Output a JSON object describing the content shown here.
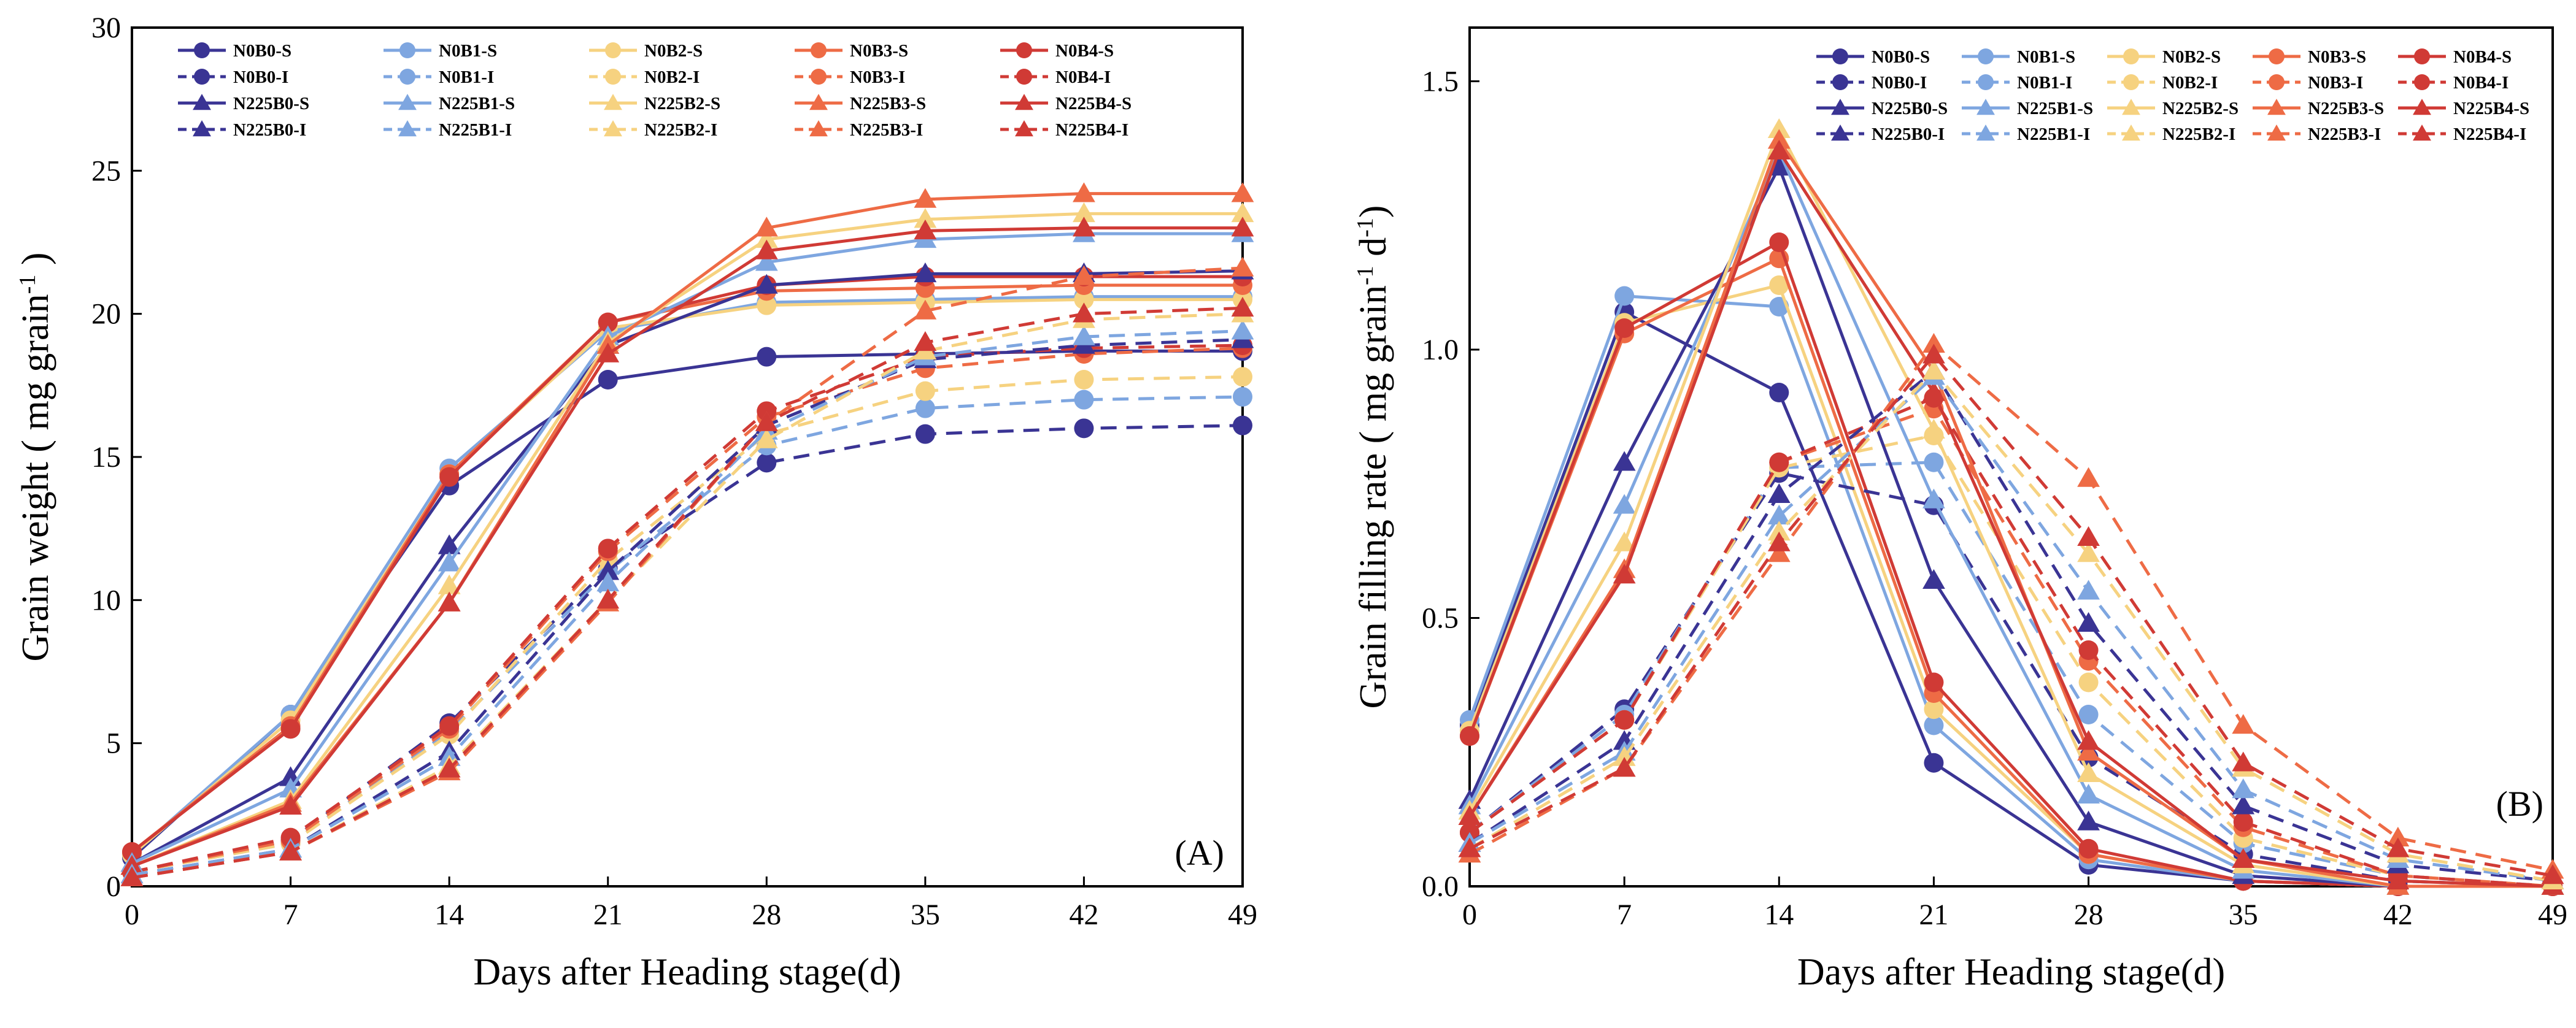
{
  "style": {
    "colors": {
      "N0B0": "#3a3494",
      "N0B1": "#7ea6e0",
      "N0B2": "#f6d280",
      "N0B3": "#ee6b45",
      "N0B4": "#d03a35"
    },
    "sowing_dash": "none",
    "irrigation_dash": "dashed",
    "N0_marker": "circle",
    "N225_marker": "triangle"
  },
  "chart_data": [
    {
      "type": "line",
      "panel_label": "(A)",
      "xlabel": "Days after Heading stage(d)",
      "ylabel_main": "Grain weight ( mg grain",
      "ylabel_sup": "-1",
      "ylabel_tail": " )",
      "xlim": [
        0,
        49
      ],
      "ylim": [
        0,
        30
      ],
      "xticks": [
        0,
        7,
        14,
        21,
        28,
        35,
        42,
        49
      ],
      "yticks": [
        0,
        5,
        10,
        15,
        20,
        25,
        30
      ],
      "grid": false,
      "legend_position": "top-left",
      "x": [
        0,
        7,
        14,
        21,
        28,
        35,
        42,
        49
      ],
      "series": [
        {
          "name": "N0B0-S",
          "color_key": "N0B0",
          "marker": "circle",
          "dashed": false,
          "values": [
            1.0,
            6.0,
            14.0,
            17.7,
            18.5,
            18.6,
            18.7,
            18.7
          ]
        },
        {
          "name": "N0B1-S",
          "color_key": "N0B1",
          "marker": "circle",
          "dashed": false,
          "values": [
            1.1,
            6.0,
            14.6,
            19.4,
            20.4,
            20.5,
            20.6,
            20.6
          ]
        },
        {
          "name": "N0B2-S",
          "color_key": "N0B2",
          "marker": "circle",
          "dashed": false,
          "values": [
            1.1,
            5.8,
            14.4,
            19.5,
            20.3,
            20.4,
            20.5,
            20.5
          ]
        },
        {
          "name": "N0B3-S",
          "color_key": "N0B3",
          "marker": "circle",
          "dashed": false,
          "values": [
            1.2,
            5.6,
            14.4,
            19.7,
            20.8,
            20.9,
            21.0,
            21.0
          ]
        },
        {
          "name": "N0B4-S",
          "color_key": "N0B4",
          "marker": "circle",
          "dashed": false,
          "values": [
            1.2,
            5.5,
            14.3,
            19.7,
            21.0,
            21.3,
            21.3,
            21.3
          ]
        },
        {
          "name": "N0B0-I",
          "color_key": "N0B0",
          "marker": "circle",
          "dashed": true,
          "values": [
            0.5,
            1.6,
            5.7,
            11.1,
            14.8,
            15.8,
            16.0,
            16.1
          ]
        },
        {
          "name": "N0B1-I",
          "color_key": "N0B1",
          "marker": "circle",
          "dashed": true,
          "values": [
            0.5,
            1.5,
            5.4,
            11.0,
            15.4,
            16.7,
            17.0,
            17.1
          ]
        },
        {
          "name": "N0B2-I",
          "color_key": "N0B2",
          "marker": "circle",
          "dashed": true,
          "values": [
            0.5,
            1.5,
            5.3,
            11.4,
            15.8,
            17.3,
            17.7,
            17.8
          ]
        },
        {
          "name": "N0B3-I",
          "color_key": "N0B3",
          "marker": "circle",
          "dashed": true,
          "values": [
            0.5,
            1.6,
            5.5,
            11.7,
            16.4,
            18.1,
            18.6,
            18.8
          ]
        },
        {
          "name": "N0B4-I",
          "color_key": "N0B4",
          "marker": "circle",
          "dashed": true,
          "values": [
            0.5,
            1.7,
            5.6,
            11.8,
            16.6,
            18.5,
            18.8,
            18.9
          ]
        },
        {
          "name": "N225B0-S",
          "color_key": "N0B0",
          "marker": "triangle",
          "dashed": false,
          "values": [
            0.8,
            3.8,
            11.9,
            18.9,
            21.0,
            21.4,
            21.4,
            21.5
          ]
        },
        {
          "name": "N225B1-S",
          "color_key": "N0B1",
          "marker": "triangle",
          "dashed": false,
          "values": [
            0.8,
            3.4,
            11.3,
            19.2,
            21.8,
            22.6,
            22.8,
            22.8
          ]
        },
        {
          "name": "N225B2-S",
          "color_key": "N0B2",
          "marker": "triangle",
          "dashed": false,
          "values": [
            0.7,
            3.0,
            10.5,
            19.0,
            22.6,
            23.3,
            23.5,
            23.5
          ]
        },
        {
          "name": "N225B3-S",
          "color_key": "N0B3",
          "marker": "triangle",
          "dashed": false,
          "values": [
            0.7,
            2.9,
            9.9,
            18.9,
            23.0,
            24.0,
            24.2,
            24.2
          ]
        },
        {
          "name": "N225B4-S",
          "color_key": "N0B4",
          "marker": "triangle",
          "dashed": false,
          "values": [
            0.7,
            2.8,
            9.9,
            18.6,
            22.2,
            22.9,
            23.0,
            23.0
          ]
        },
        {
          "name": "N225B0-I",
          "color_key": "N0B0",
          "marker": "triangle",
          "dashed": true,
          "values": [
            0.4,
            1.3,
            4.7,
            11.0,
            16.1,
            18.4,
            18.9,
            19.1
          ]
        },
        {
          "name": "N225B1-I",
          "color_key": "N0B1",
          "marker": "triangle",
          "dashed": true,
          "values": [
            0.4,
            1.3,
            4.5,
            10.6,
            15.9,
            18.5,
            19.2,
            19.4
          ]
        },
        {
          "name": "N225B2-I",
          "color_key": "N0B2",
          "marker": "triangle",
          "dashed": true,
          "values": [
            0.3,
            1.2,
            4.2,
            10.0,
            15.6,
            18.7,
            19.8,
            20.0
          ]
        },
        {
          "name": "N225B3-I",
          "color_key": "N0B3",
          "marker": "triangle",
          "dashed": true,
          "values": [
            0.3,
            1.2,
            4.0,
            9.9,
            16.2,
            20.1,
            21.3,
            21.6
          ]
        },
        {
          "name": "N225B4-I",
          "color_key": "N0B4",
          "marker": "triangle",
          "dashed": true,
          "values": [
            0.3,
            1.2,
            4.1,
            10.0,
            16.2,
            19.0,
            20.0,
            20.2
          ]
        }
      ]
    },
    {
      "type": "line",
      "panel_label": "(B)",
      "xlabel": "Days after Heading stage(d)",
      "ylabel_main": "Grain filling rate ( mg grain",
      "ylabel_sup": "-1",
      "ylabel_mid": " d",
      "ylabel_sup2": "-1",
      "ylabel_tail": ")",
      "xlim": [
        0,
        49
      ],
      "ylim": [
        0,
        1.6
      ],
      "xticks": [
        0,
        7,
        14,
        21,
        28,
        35,
        42,
        49
      ],
      "yticks": [
        0.0,
        0.5,
        1.0,
        1.5
      ],
      "grid": false,
      "legend_position": "top-right",
      "x": [
        0,
        7,
        14,
        21,
        28,
        35,
        42,
        49
      ],
      "series": [
        {
          "name": "N0B0-S",
          "color_key": "N0B0",
          "marker": "circle",
          "dashed": false,
          "values": [
            0.3,
            1.07,
            0.92,
            0.23,
            0.04,
            0.01,
            0.0,
            0.0
          ]
        },
        {
          "name": "N0B1-S",
          "color_key": "N0B1",
          "marker": "circle",
          "dashed": false,
          "values": [
            0.31,
            1.1,
            1.08,
            0.3,
            0.05,
            0.01,
            0.0,
            0.0
          ]
        },
        {
          "name": "N0B2-S",
          "color_key": "N0B2",
          "marker": "circle",
          "dashed": false,
          "values": [
            0.29,
            1.05,
            1.12,
            0.33,
            0.06,
            0.01,
            0.0,
            0.0
          ]
        },
        {
          "name": "N0B3-S",
          "color_key": "N0B3",
          "marker": "circle",
          "dashed": false,
          "values": [
            0.28,
            1.03,
            1.17,
            0.36,
            0.06,
            0.01,
            0.0,
            0.0
          ]
        },
        {
          "name": "N0B4-S",
          "color_key": "N0B4",
          "marker": "circle",
          "dashed": false,
          "values": [
            0.28,
            1.04,
            1.2,
            0.38,
            0.07,
            0.01,
            0.0,
            0.0
          ]
        },
        {
          "name": "N0B0-I",
          "color_key": "N0B0",
          "marker": "circle",
          "dashed": true,
          "values": [
            0.1,
            0.33,
            0.77,
            0.71,
            0.24,
            0.06,
            0.01,
            0.0
          ]
        },
        {
          "name": "N0B1-I",
          "color_key": "N0B1",
          "marker": "circle",
          "dashed": true,
          "values": [
            0.1,
            0.32,
            0.78,
            0.79,
            0.32,
            0.08,
            0.02,
            0.0
          ]
        },
        {
          "name": "N0B2-I",
          "color_key": "N0B2",
          "marker": "circle",
          "dashed": true,
          "values": [
            0.1,
            0.31,
            0.78,
            0.84,
            0.38,
            0.09,
            0.02,
            0.0
          ]
        },
        {
          "name": "N0B3-I",
          "color_key": "N0B3",
          "marker": "circle",
          "dashed": true,
          "values": [
            0.1,
            0.31,
            0.79,
            0.89,
            0.42,
            0.11,
            0.02,
            0.0
          ]
        },
        {
          "name": "N0B4-I",
          "color_key": "N0B4",
          "marker": "circle",
          "dashed": true,
          "values": [
            0.1,
            0.31,
            0.79,
            0.91,
            0.44,
            0.12,
            0.02,
            0.0
          ]
        },
        {
          "name": "N225B0-S",
          "color_key": "N0B0",
          "marker": "triangle",
          "dashed": false,
          "values": [
            0.16,
            0.79,
            1.34,
            0.57,
            0.12,
            0.02,
            0.0,
            0.0
          ]
        },
        {
          "name": "N225B1-S",
          "color_key": "N0B1",
          "marker": "triangle",
          "dashed": false,
          "values": [
            0.15,
            0.71,
            1.37,
            0.72,
            0.17,
            0.03,
            0.0,
            0.0
          ]
        },
        {
          "name": "N225B2-S",
          "color_key": "N0B2",
          "marker": "triangle",
          "dashed": false,
          "values": [
            0.14,
            0.64,
            1.41,
            0.85,
            0.21,
            0.04,
            0.0,
            0.0
          ]
        },
        {
          "name": "N225B3-S",
          "color_key": "N0B3",
          "marker": "triangle",
          "dashed": false,
          "values": [
            0.13,
            0.59,
            1.39,
            0.96,
            0.25,
            0.05,
            0.0,
            0.0
          ]
        },
        {
          "name": "N225B4-S",
          "color_key": "N0B4",
          "marker": "triangle",
          "dashed": false,
          "values": [
            0.13,
            0.58,
            1.37,
            0.92,
            0.27,
            0.05,
            0.01,
            0.0
          ]
        },
        {
          "name": "N225B0-I",
          "color_key": "N0B0",
          "marker": "triangle",
          "dashed": true,
          "values": [
            0.08,
            0.27,
            0.73,
            0.96,
            0.49,
            0.15,
            0.04,
            0.01
          ]
        },
        {
          "name": "N225B1-I",
          "color_key": "N0B1",
          "marker": "triangle",
          "dashed": true,
          "values": [
            0.08,
            0.25,
            0.69,
            0.95,
            0.55,
            0.18,
            0.05,
            0.01
          ]
        },
        {
          "name": "N225B2-I",
          "color_key": "N0B2",
          "marker": "triangle",
          "dashed": true,
          "values": [
            0.07,
            0.24,
            0.66,
            0.96,
            0.62,
            0.22,
            0.06,
            0.01
          ]
        },
        {
          "name": "N225B3-I",
          "color_key": "N0B3",
          "marker": "triangle",
          "dashed": true,
          "values": [
            0.06,
            0.22,
            0.62,
            1.01,
            0.76,
            0.3,
            0.09,
            0.03
          ]
        },
        {
          "name": "N225B4-I",
          "color_key": "N0B4",
          "marker": "triangle",
          "dashed": true,
          "values": [
            0.07,
            0.22,
            0.64,
            0.99,
            0.65,
            0.23,
            0.07,
            0.02
          ]
        }
      ]
    }
  ]
}
